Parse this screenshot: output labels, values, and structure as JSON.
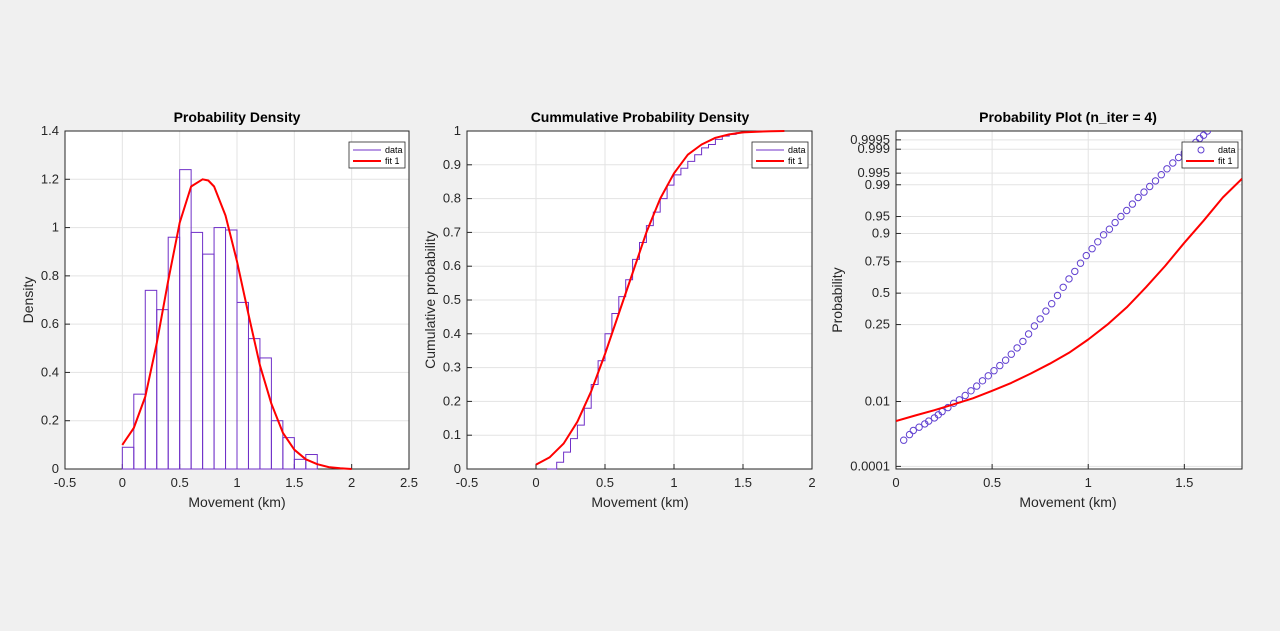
{
  "figure": {
    "background": "#f0f0f0"
  },
  "colors": {
    "data": "#7030c8",
    "fit": "#ff0000",
    "marker": "#6040d0",
    "grid": "#e3e3e3",
    "axis": "#262626"
  },
  "chart_data": [
    {
      "type": "bar",
      "title": "Probability Density",
      "xlabel": "Movement (km)",
      "ylabel": "Density",
      "xlim": [
        -0.5,
        2.5
      ],
      "ylim": [
        0,
        1.4
      ],
      "xticks": [
        "-0.5",
        "0",
        "0.5",
        "1",
        "1.5",
        "2",
        "2.5"
      ],
      "yticks": [
        "0",
        "0.2",
        "0.4",
        "0.6",
        "0.8",
        "1",
        "1.2",
        "1.4"
      ],
      "grid": true,
      "legend": {
        "location": "top-right",
        "entries": [
          "data",
          "fit 1"
        ]
      },
      "bin_width": 0.1,
      "bins": [
        {
          "x": 0.0,
          "value": 0.09
        },
        {
          "x": 0.1,
          "value": 0.31
        },
        {
          "x": 0.2,
          "value": 0.74
        },
        {
          "x": 0.3,
          "value": 0.66
        },
        {
          "x": 0.4,
          "value": 0.96
        },
        {
          "x": 0.5,
          "value": 1.24
        },
        {
          "x": 0.6,
          "value": 0.98
        },
        {
          "x": 0.7,
          "value": 0.89
        },
        {
          "x": 0.8,
          "value": 1.0
        },
        {
          "x": 0.9,
          "value": 0.99
        },
        {
          "x": 1.0,
          "value": 0.69
        },
        {
          "x": 1.1,
          "value": 0.54
        },
        {
          "x": 1.2,
          "value": 0.46
        },
        {
          "x": 1.3,
          "value": 0.2
        },
        {
          "x": 1.4,
          "value": 0.13
        },
        {
          "x": 1.5,
          "value": 0.04
        },
        {
          "x": 1.6,
          "value": 0.06
        }
      ],
      "fit": {
        "x": [
          0.0,
          0.1,
          0.2,
          0.3,
          0.4,
          0.5,
          0.6,
          0.7,
          0.75,
          0.8,
          0.9,
          1.0,
          1.1,
          1.2,
          1.3,
          1.4,
          1.5,
          1.6,
          1.7,
          1.8,
          1.9,
          2.0
        ],
        "y": [
          0.1,
          0.17,
          0.3,
          0.52,
          0.78,
          1.02,
          1.17,
          1.2,
          1.195,
          1.17,
          1.05,
          0.86,
          0.64,
          0.43,
          0.27,
          0.15,
          0.08,
          0.04,
          0.02,
          0.008,
          0.003,
          0.0
        ]
      }
    },
    {
      "type": "line",
      "title": "Cummulative Probability Density",
      "xlabel": "Movement (km)",
      "ylabel": "Cumulative probability",
      "xlim": [
        -0.5,
        2
      ],
      "ylim": [
        0,
        1
      ],
      "xticks": [
        "-0.5",
        "0",
        "0.5",
        "1",
        "1.5",
        "2"
      ],
      "yticks": [
        "0",
        "0.1",
        "0.2",
        "0.3",
        "0.4",
        "0.5",
        "0.6",
        "0.7",
        "0.8",
        "0.9",
        "1"
      ],
      "grid": true,
      "legend": {
        "location": "top-right",
        "entries": [
          "data",
          "fit 1"
        ]
      },
      "series": [
        {
          "name": "data",
          "x": [
            0.08,
            0.15,
            0.2,
            0.25,
            0.3,
            0.35,
            0.4,
            0.45,
            0.5,
            0.55,
            0.6,
            0.65,
            0.7,
            0.75,
            0.8,
            0.85,
            0.9,
            0.95,
            1.0,
            1.05,
            1.1,
            1.15,
            1.2,
            1.25,
            1.3,
            1.35,
            1.4,
            1.45,
            1.5,
            1.55,
            1.6,
            1.65,
            1.7
          ],
          "y": [
            0.0,
            0.02,
            0.05,
            0.09,
            0.13,
            0.18,
            0.25,
            0.32,
            0.4,
            0.46,
            0.51,
            0.56,
            0.62,
            0.67,
            0.72,
            0.76,
            0.8,
            0.84,
            0.87,
            0.89,
            0.91,
            0.93,
            0.95,
            0.96,
            0.975,
            0.985,
            0.99,
            0.995,
            0.997,
            0.998,
            0.999,
            0.9995,
            1.0
          ]
        },
        {
          "name": "fit 1",
          "x": [
            0.0,
            0.1,
            0.2,
            0.3,
            0.4,
            0.5,
            0.6,
            0.7,
            0.8,
            0.9,
            1.0,
            1.1,
            1.2,
            1.3,
            1.4,
            1.5,
            1.6,
            1.7,
            1.8
          ],
          "y": [
            0.013,
            0.035,
            0.075,
            0.14,
            0.23,
            0.34,
            0.46,
            0.58,
            0.7,
            0.8,
            0.875,
            0.93,
            0.96,
            0.98,
            0.99,
            0.996,
            0.998,
            0.999,
            1.0
          ]
        }
      ]
    },
    {
      "type": "scatter",
      "title": "Probability Plot (n_iter = 4)",
      "xlabel": "Movement (km)",
      "ylabel": "Probability",
      "xlim": [
        0,
        1.8
      ],
      "xticks": [
        "0",
        "0.5",
        "1",
        "1.5"
      ],
      "yticks": [
        "0.0001",
        "0.01",
        "0.25",
        "0.5",
        "0.75",
        "0.9",
        "0.95",
        "0.99",
        "0.995",
        "0.999",
        "0.9995"
      ],
      "grid": true,
      "legend": {
        "location": "top-right",
        "entries": [
          "data",
          "fit 1"
        ]
      },
      "points": [
        [
          0.04,
          0.0008
        ],
        [
          0.07,
          0.0012
        ],
        [
          0.09,
          0.0016
        ],
        [
          0.12,
          0.002
        ],
        [
          0.15,
          0.0025
        ],
        [
          0.17,
          0.003
        ],
        [
          0.2,
          0.0037
        ],
        [
          0.22,
          0.0045
        ],
        [
          0.24,
          0.0055
        ],
        [
          0.27,
          0.007
        ],
        [
          0.3,
          0.009
        ],
        [
          0.33,
          0.011
        ],
        [
          0.36,
          0.014
        ],
        [
          0.39,
          0.018
        ],
        [
          0.42,
          0.023
        ],
        [
          0.45,
          0.03
        ],
        [
          0.48,
          0.038
        ],
        [
          0.51,
          0.048
        ],
        [
          0.54,
          0.06
        ],
        [
          0.57,
          0.075
        ],
        [
          0.6,
          0.095
        ],
        [
          0.63,
          0.12
        ],
        [
          0.66,
          0.15
        ],
        [
          0.69,
          0.19
        ],
        [
          0.72,
          0.24
        ],
        [
          0.75,
          0.29
        ],
        [
          0.78,
          0.35
        ],
        [
          0.81,
          0.41
        ],
        [
          0.84,
          0.48
        ],
        [
          0.87,
          0.55
        ],
        [
          0.9,
          0.62
        ],
        [
          0.93,
          0.68
        ],
        [
          0.96,
          0.74
        ],
        [
          0.99,
          0.79
        ],
        [
          1.02,
          0.83
        ],
        [
          1.05,
          0.865
        ],
        [
          1.08,
          0.895
        ],
        [
          1.11,
          0.915
        ],
        [
          1.14,
          0.935
        ],
        [
          1.17,
          0.95
        ],
        [
          1.2,
          0.962
        ],
        [
          1.23,
          0.972
        ],
        [
          1.26,
          0.98
        ],
        [
          1.29,
          0.985
        ],
        [
          1.32,
          0.989
        ],
        [
          1.35,
          0.992
        ],
        [
          1.38,
          0.9945
        ],
        [
          1.41,
          0.9962
        ],
        [
          1.44,
          0.9974
        ],
        [
          1.47,
          0.9982
        ],
        [
          1.5,
          0.9987
        ],
        [
          1.53,
          0.9991
        ],
        [
          1.56,
          0.9994
        ],
        [
          1.58,
          0.99955
        ],
        [
          1.6,
          0.99965
        ],
        [
          1.62,
          0.99975
        ],
        [
          1.64,
          0.99982
        ],
        [
          1.66,
          0.9999
        ]
      ],
      "fit": {
        "x": [
          0.0,
          0.1,
          0.2,
          0.3,
          0.4,
          0.5,
          0.6,
          0.7,
          0.8,
          0.9,
          1.0,
          1.1,
          1.2,
          1.3,
          1.4,
          1.5,
          1.6,
          1.7,
          1.8
        ],
        "y": [
          0.003,
          0.0043,
          0.006,
          0.0085,
          0.012,
          0.018,
          0.027,
          0.042,
          0.065,
          0.1,
          0.16,
          0.25,
          0.38,
          0.55,
          0.72,
          0.86,
          0.94,
          0.98,
          0.993
        ]
      }
    }
  ]
}
